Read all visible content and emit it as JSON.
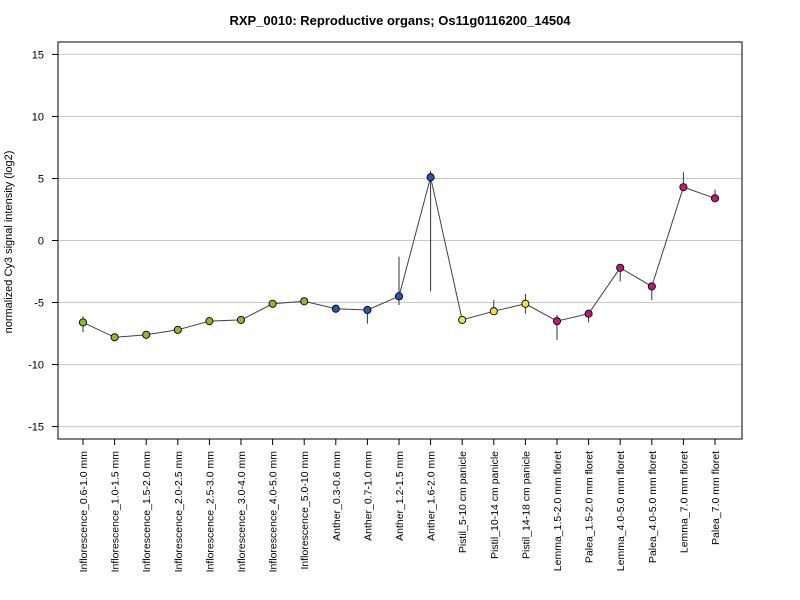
{
  "chart_data": {
    "type": "line",
    "title": "RXP_0010: Reproductive organs; Os11g0116200_14504",
    "xlabel": "",
    "ylabel": "normalized Cy3 signal intensity (log2)",
    "ylim": [
      -16,
      16
    ],
    "yticks": [
      -15,
      -10,
      -5,
      0,
      5,
      10,
      15
    ],
    "grid": "horizontal",
    "line_color": "#404040",
    "categories": [
      "Inflorescence_0.6-1.0 mm",
      "Inflorescence_1.0-1.5 mm",
      "Inflorescence_1.5-2.0 mm",
      "Inflorescence_2.0-2.5 mm",
      "Inflorescence_2.5-3.0 mm",
      "Inflorescence_3.0-4.0 mm",
      "Inflorescence_4.0-5.0 mm",
      "Inflorescence_5.0-10 mm",
      "Anther_0.3-0.6 mm",
      "Anther_0.7-1.0 mm",
      "Anther_1.2-1.5 mm",
      "Anther_1.6-2.0 mm",
      "Pistil_5-10 cm panicle",
      "Pistil_10-14 cm panicle",
      "Pistil_14-18 cm panicle",
      "Lemma_1.5-2.0 mm floret",
      "Palea_1.5-2.0 mm floret",
      "Lemma_4.0-5.0 mm floret",
      "Palea_4.0-5.0 mm floret",
      "Lemma_7.0 mm floret",
      "Palea_7.0 mm floret"
    ],
    "values": [
      -6.6,
      -7.8,
      -7.6,
      -7.2,
      -6.5,
      -6.4,
      -5.1,
      -4.9,
      -5.5,
      -5.6,
      -4.5,
      5.1,
      -6.4,
      -5.7,
      -5.1,
      -6.5,
      -5.9,
      -2.2,
      -3.7,
      4.3,
      3.4
    ],
    "error_low": [
      -7.4,
      -7.9,
      -7.7,
      -7.3,
      -6.6,
      -6.5,
      -5.4,
      -5.0,
      -5.6,
      -6.7,
      -5.2,
      -4.1,
      -6.5,
      -6.0,
      -5.9,
      -8.0,
      -6.6,
      -3.3,
      -4.8,
      4.2,
      3.1
    ],
    "error_high": [
      -6.1,
      -7.7,
      -7.5,
      -7.1,
      -6.4,
      -6.3,
      -4.9,
      -4.8,
      -5.4,
      -5.5,
      -1.3,
      5.6,
      -6.3,
      -4.8,
      -4.3,
      -6.0,
      -5.8,
      -2.1,
      -3.6,
      5.5,
      4.1
    ],
    "point_colors": [
      "#8ab832",
      "#8ab832",
      "#8ab832",
      "#8ab832",
      "#8ab832",
      "#8ab832",
      "#8ab832",
      "#8ab832",
      "#2755b8",
      "#2755b8",
      "#2755b8",
      "#2755b8",
      "#f0e040",
      "#f0e040",
      "#f0e040",
      "#c2187a",
      "#c2187a",
      "#c2187a",
      "#c2187a",
      "#c2187a",
      "#c2187a"
    ]
  }
}
